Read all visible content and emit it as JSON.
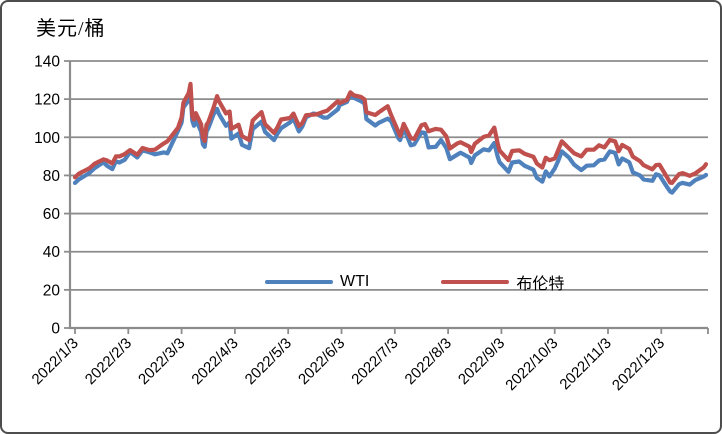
{
  "title": "美元/桶",
  "legend": {
    "items": [
      {
        "label": "WTI",
        "color": "#4F81BD"
      },
      {
        "label": "布伦特",
        "color": "#C0504D"
      }
    ]
  },
  "colors": {
    "background": "#FFFFFF",
    "border": "#4D4D4D",
    "axis": "#8C8C8C",
    "grid": "#8C8C8C",
    "text": "#000000",
    "wti": "#4F81BD",
    "brent": "#C0504D"
  },
  "chart_data": {
    "type": "line",
    "title": "美元/桶",
    "ylabel": "美元/桶",
    "xlabel": "",
    "grid": true,
    "legend_position": "bottom-inside",
    "ylim": [
      0,
      140
    ],
    "yticks": [
      0,
      20,
      40,
      60,
      80,
      100,
      120,
      140
    ],
    "x_tick_labels": [
      "2022/1/3",
      "2022/2/3",
      "2022/3/3",
      "2022/4/3",
      "2022/5/3",
      "2022/6/3",
      "2022/7/3",
      "2022/8/3",
      "2022/9/3",
      "2022/10/3",
      "2022/11/3",
      "2022/12/3"
    ],
    "x": [
      "1/3",
      "1/5",
      "1/7",
      "1/11",
      "1/14",
      "1/19",
      "1/21",
      "1/24",
      "1/26",
      "1/28",
      "2/1",
      "2/4",
      "2/8",
      "2/11",
      "2/15",
      "2/18",
      "2/23",
      "2/25",
      "3/1",
      "3/3",
      "3/4",
      "3/7",
      "3/8",
      "3/9",
      "3/10",
      "3/11",
      "3/14",
      "3/15",
      "3/16",
      "3/17",
      "3/18",
      "3/21",
      "3/23",
      "3/24",
      "3/28",
      "3/30",
      "4/1",
      "4/5",
      "4/7",
      "4/11",
      "4/13",
      "4/18",
      "4/20",
      "4/25",
      "4/27",
      "4/29",
      "5/4",
      "5/6",
      "5/9",
      "5/11",
      "5/13",
      "5/17",
      "5/19",
      "5/23",
      "5/25",
      "5/31",
      "6/2",
      "6/6",
      "6/8",
      "6/10",
      "6/14",
      "6/16",
      "6/17",
      "6/22",
      "6/24",
      "6/29",
      "7/1",
      "7/5",
      "7/6",
      "7/8",
      "7/12",
      "7/14",
      "7/18",
      "7/20",
      "7/22",
      "7/26",
      "7/29",
      "8/2",
      "8/4",
      "8/8",
      "8/10",
      "8/15",
      "8/16",
      "8/18",
      "8/23",
      "8/26",
      "8/29",
      "8/31",
      "9/2",
      "9/7",
      "9/9",
      "9/13",
      "9/16",
      "9/21",
      "9/23",
      "9/26",
      "9/28",
      "9/30",
      "10/3",
      "10/5",
      "10/7",
      "10/11",
      "10/14",
      "10/18",
      "10/21",
      "10/25",
      "10/28",
      "11/1",
      "11/4",
      "11/7",
      "11/9",
      "11/11",
      "11/15",
      "11/17",
      "11/21",
      "11/23",
      "11/28",
      "11/30",
      "12/2",
      "12/6",
      "12/8",
      "12/9",
      "12/13",
      "12/15",
      "12/19",
      "12/22",
      "12/27",
      "12/30"
    ],
    "series": [
      {
        "name": "WTI",
        "color": "#4F81BD",
        "values": [
          76.1,
          77.8,
          78.9,
          81.2,
          83.8,
          86.9,
          85.1,
          83.3,
          87.4,
          86.8,
          88.2,
          92.3,
          89.4,
          93.1,
          92.1,
          91.1,
          92.1,
          91.6,
          103.4,
          107.7,
          115.7,
          119.4,
          123.7,
          108.7,
          106.0,
          109.3,
          103.0,
          96.4,
          95.0,
          103.0,
          104.7,
          112.1,
          114.9,
          112.3,
          106.0,
          107.8,
          99.3,
          102.0,
          96.0,
          94.3,
          104.3,
          108.2,
          102.8,
          98.5,
          102.0,
          104.7,
          107.8,
          109.8,
          103.1,
          105.7,
          110.5,
          112.4,
          112.2,
          110.3,
          110.3,
          114.7,
          116.9,
          118.5,
          122.1,
          120.7,
          118.9,
          117.6,
          109.6,
          106.2,
          107.6,
          109.8,
          108.4,
          99.5,
          98.5,
          104.8,
          95.8,
          96.3,
          102.6,
          102.3,
          94.7,
          95.0,
          98.6,
          94.4,
          88.5,
          90.8,
          91.9,
          89.4,
          86.5,
          90.5,
          93.7,
          93.1,
          97.0,
          89.6,
          86.9,
          81.9,
          86.8,
          87.3,
          85.1,
          83.0,
          78.7,
          76.7,
          82.1,
          79.5,
          83.6,
          87.8,
          92.6,
          89.4,
          85.6,
          82.8,
          85.1,
          85.3,
          87.9,
          88.4,
          92.6,
          91.8,
          85.8,
          88.9,
          86.9,
          81.6,
          80.0,
          77.9,
          77.2,
          80.6,
          80.0,
          74.3,
          71.5,
          71.0,
          75.4,
          76.1,
          75.2,
          77.5,
          79.5,
          80.3
        ]
      },
      {
        "name": "布伦特",
        "color": "#C0504D",
        "values": [
          79.0,
          80.8,
          81.8,
          83.7,
          86.1,
          88.4,
          87.9,
          86.3,
          90.0,
          90.0,
          91.2,
          93.3,
          90.8,
          94.4,
          93.3,
          93.5,
          96.8,
          97.9,
          105.0,
          110.5,
          118.1,
          123.2,
          128.0,
          111.1,
          109.3,
          112.7,
          106.9,
          99.9,
          98.0,
          106.6,
          107.9,
          115.6,
          121.6,
          119.0,
          112.5,
          113.5,
          104.4,
          106.6,
          100.6,
          98.5,
          108.8,
          113.2,
          106.8,
          102.3,
          105.3,
          109.3,
          110.1,
          112.4,
          105.9,
          107.5,
          111.6,
          111.9,
          112.0,
          113.4,
          114.0,
          119.0,
          118.0,
          119.5,
          123.6,
          122.0,
          121.2,
          119.8,
          113.1,
          111.7,
          113.1,
          116.3,
          111.6,
          102.8,
          100.7,
          107.0,
          99.5,
          99.1,
          106.3,
          106.9,
          103.2,
          104.4,
          104.0,
          100.5,
          94.1,
          96.7,
          97.4,
          95.1,
          92.3,
          96.6,
          100.2,
          101.0,
          105.1,
          96.5,
          93.0,
          88.0,
          92.8,
          93.2,
          91.4,
          89.8,
          86.2,
          84.1,
          89.3,
          88.0,
          88.9,
          93.4,
          97.9,
          94.3,
          91.6,
          90.0,
          93.5,
          93.5,
          95.8,
          94.7,
          98.6,
          97.9,
          92.7,
          96.0,
          93.9,
          89.8,
          87.5,
          85.4,
          83.2,
          85.4,
          85.6,
          79.4,
          76.2,
          76.1,
          80.7,
          81.2,
          79.8,
          81.0,
          84.3,
          85.9
        ]
      }
    ]
  }
}
